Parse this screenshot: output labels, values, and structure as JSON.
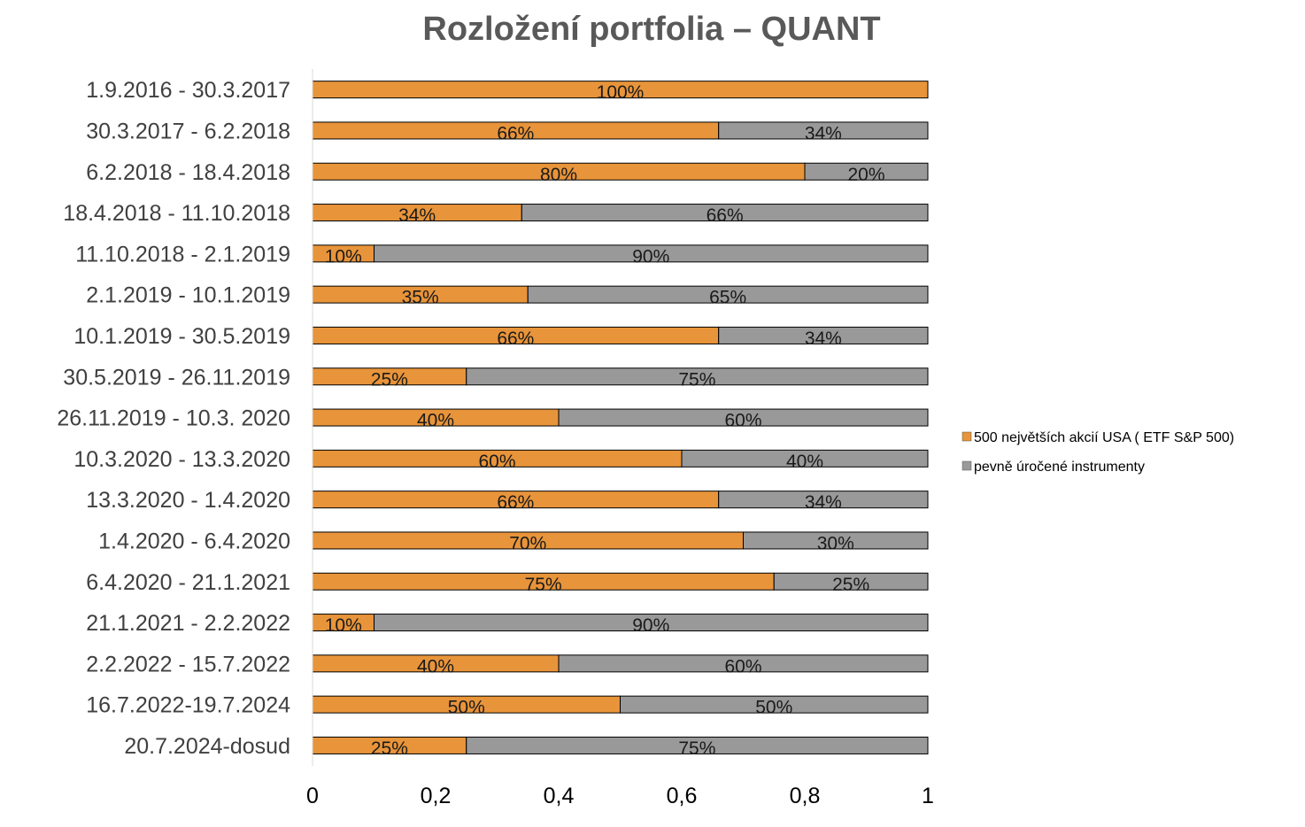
{
  "chart_data": {
    "type": "bar",
    "orientation": "horizontal",
    "stacked": true,
    "title": "Rozložení portfolia – QUANT",
    "categories": [
      "1.9.2016 - 30.3.2017",
      "30.3.2017 - 6.2.2018",
      "6.2.2018 - 18.4.2018",
      "18.4.2018 - 11.10.2018",
      "11.10.2018 - 2.1.2019",
      "2.1.2019 - 10.1.2019",
      "10.1.2019 - 30.5.2019",
      "30.5.2019 - 26.11.2019",
      "26.11.2019 - 10.3. 2020",
      "10.3.2020 - 13.3.2020",
      "13.3.2020 - 1.4.2020",
      "1.4.2020 - 6.4.2020",
      "6.4.2020 - 21.1.2021",
      "21.1.2021 - 2.2.2022",
      "2.2.2022 - 15.7.2022",
      "16.7.2022-19.7.2024",
      "20.7.2024-dosud"
    ],
    "series": [
      {
        "name": "500 největších akcií USA ( ETF S&P 500)",
        "color": "#E8943A",
        "values": [
          1.0,
          0.66,
          0.8,
          0.34,
          0.1,
          0.35,
          0.66,
          0.25,
          0.4,
          0.6,
          0.66,
          0.7,
          0.75,
          0.1,
          0.4,
          0.5,
          0.25
        ],
        "labels": [
          "100%",
          "66%",
          "80%",
          "34%",
          "10%",
          "35%",
          "66%",
          "25%",
          "40%",
          "60%",
          "66%",
          "70%",
          "75%",
          "10%",
          "40%",
          "50%",
          "25%"
        ]
      },
      {
        "name": "pevně úročené instrumenty",
        "color": "#999999",
        "values": [
          0.0,
          0.34,
          0.2,
          0.66,
          0.9,
          0.65,
          0.34,
          0.75,
          0.6,
          0.4,
          0.34,
          0.3,
          0.25,
          0.9,
          0.6,
          0.5,
          0.75
        ],
        "labels": [
          "",
          "34%",
          "20%",
          "66%",
          "90%",
          "65%",
          "34%",
          "75%",
          "60%",
          "40%",
          "34%",
          "30%",
          "25%",
          "90%",
          "60%",
          "50%",
          "75%"
        ]
      }
    ],
    "xlim": [
      0,
      1
    ],
    "xticks": [
      "0",
      "0,2",
      "0,4",
      "0,6",
      "0,8",
      "1"
    ],
    "grid": false,
    "legend": "right"
  }
}
